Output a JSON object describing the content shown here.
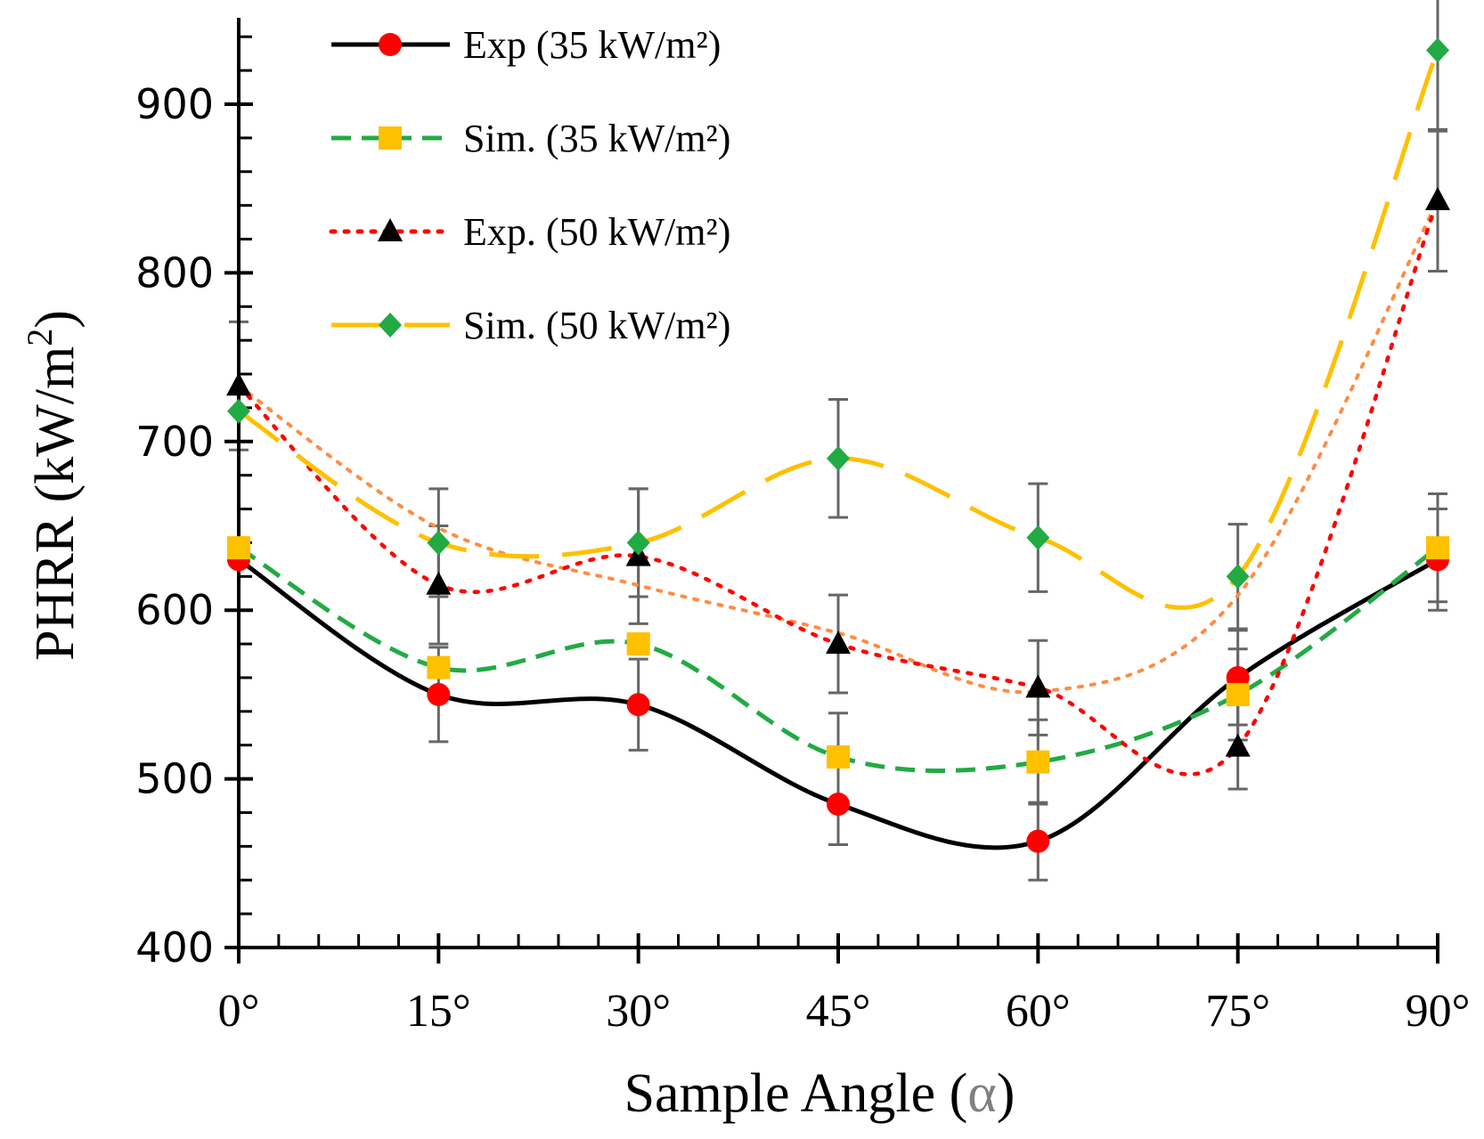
{
  "chart_data": {
    "type": "line",
    "x": [
      0,
      15,
      30,
      45,
      60,
      75,
      90
    ],
    "categories": [
      "0°",
      "15°",
      "30°",
      "45°",
      "60°",
      "75°",
      "90°"
    ],
    "xlabel_main": "Sample Angle (",
    "xlabel_symbol": "α",
    "xlabel_close": ")",
    "ylabel_main": "PHRR (kW/m",
    "ylabel_sup": "2",
    "ylabel_close": ")",
    "ylim": [
      400,
      950
    ],
    "yticks": [
      400,
      500,
      600,
      700,
      800,
      900
    ],
    "series": [
      {
        "name": "Exp (35 kW/m²)",
        "values": [
          630,
          550,
          544,
          485,
          463,
          560,
          630
        ],
        "errors": [
          null,
          28,
          27,
          24,
          23,
          28,
          30
        ],
        "line_color": "#000000",
        "marker_color": "#ff0000",
        "marker": "circle",
        "dash": "solid"
      },
      {
        "name": "Sim. (35 kW/m²)",
        "values": [
          637,
          566,
          580,
          513,
          510,
          550,
          637
        ],
        "errors": [
          null,
          null,
          null,
          26,
          25,
          27,
          32
        ],
        "line_color": "#22aa44",
        "marker_color": "#ffc000",
        "marker": "square",
        "dash": "dashed"
      },
      {
        "name": "Exp. (50 kW/m²)",
        "values": [
          733,
          615,
          632,
          580,
          554,
          519,
          843
        ],
        "errors": [
          38,
          35,
          40,
          29,
          28,
          25,
          42
        ],
        "line_color": "#ff0000",
        "marker_color": "#000000",
        "marker": "triangle",
        "dash": "dotted"
      },
      {
        "name": "Sim. (50 kW/m²)",
        "values": [
          718,
          640,
          640,
          690,
          643,
          620,
          932
        ],
        "errors": [
          null,
          32,
          32,
          35,
          32,
          31,
          48
        ],
        "line_color": "#ffc000",
        "marker_color": "#22aa44",
        "marker": "diamond",
        "dash": "longdash"
      }
    ],
    "trendline_color": "#ff8c42",
    "legend_position": "top-left",
    "grid": false
  }
}
